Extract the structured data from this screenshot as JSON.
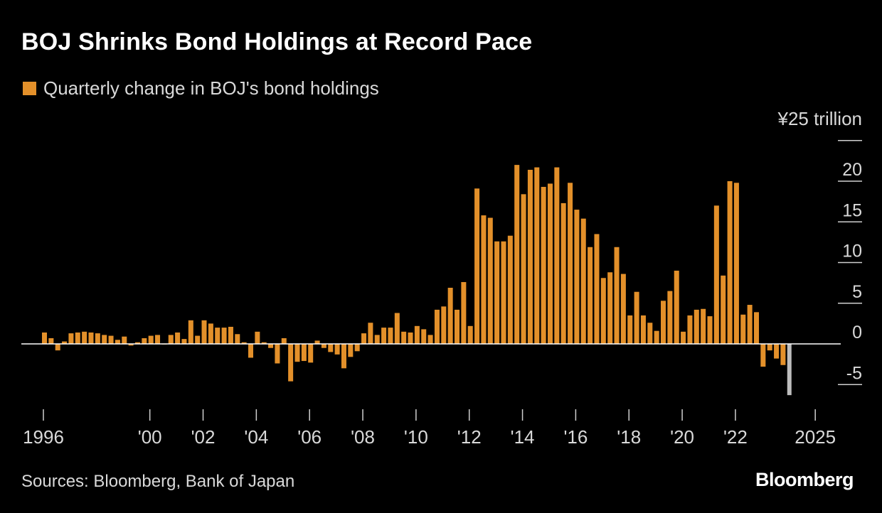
{
  "title": "BOJ Shrinks Bond Holdings at Record Pace",
  "source": "Sources: Bloomberg, Bank of Japan",
  "logo": "Bloomberg",
  "colors": {
    "background": "#000000",
    "bar": "#e3902a",
    "latest_bar": "#bdbdbd",
    "text": "#ffffff",
    "muted_text": "#d9d9d9"
  },
  "chart_data": {
    "type": "bar",
    "title": "BOJ Shrinks Bond Holdings at Record Pace",
    "legend": "Quarterly change in BOJ's bond holdings",
    "ylabel": "¥25 trillion",
    "y_axis_top_label": "¥25 trillion",
    "ylim": [
      -7.5,
      25
    ],
    "yticks": [
      -5,
      0,
      5,
      10,
      15,
      20,
      25
    ],
    "ytick_labels": [
      "-5",
      "0",
      "5",
      "10",
      "15",
      "20"
    ],
    "grid": false,
    "legend_position": "top-left",
    "x_start": {
      "year": 1996,
      "quarter": 1
    },
    "xticks": [
      {
        "year": 1996,
        "label": "1996"
      },
      {
        "year": 2000,
        "label": "'00"
      },
      {
        "year": 2002,
        "label": "'02"
      },
      {
        "year": 2004,
        "label": "'04"
      },
      {
        "year": 2006,
        "label": "'06"
      },
      {
        "year": 2008,
        "label": "'08"
      },
      {
        "year": 2010,
        "label": "'10"
      },
      {
        "year": 2012,
        "label": "'12"
      },
      {
        "year": 2014,
        "label": "'14"
      },
      {
        "year": 2016,
        "label": "'16"
      },
      {
        "year": 2018,
        "label": "'18"
      },
      {
        "year": 2020,
        "label": "'20"
      },
      {
        "year": 2022,
        "label": "'22"
      },
      {
        "year": 2025,
        "label": "2025"
      }
    ],
    "highlight_last": true,
    "values": [
      1.4,
      0.7,
      -0.8,
      0.3,
      1.3,
      1.4,
      1.5,
      1.4,
      1.3,
      1.1,
      1.0,
      0.5,
      0.9,
      -0.2,
      0.2,
      0.7,
      1.0,
      1.1,
      0.0,
      1.1,
      1.4,
      0.6,
      2.9,
      1.0,
      2.9,
      2.5,
      2.0,
      2.0,
      2.1,
      1.2,
      0.2,
      -1.7,
      1.5,
      0.2,
      -0.5,
      -2.4,
      0.7,
      -4.6,
      -2.2,
      -2.1,
      -2.3,
      0.4,
      -0.5,
      -1.0,
      -1.3,
      -3.0,
      -1.6,
      -0.9,
      1.3,
      2.6,
      1.1,
      2.0,
      2.0,
      3.8,
      1.5,
      1.4,
      2.2,
      1.8,
      1.1,
      4.2,
      4.6,
      6.9,
      4.2,
      7.6,
      2.2,
      19.1,
      15.8,
      15.5,
      12.6,
      12.6,
      13.3,
      22.0,
      18.4,
      21.4,
      21.7,
      19.3,
      19.7,
      21.7,
      17.3,
      19.8,
      16.5,
      15.4,
      11.9,
      13.5,
      8.1,
      8.8,
      11.9,
      8.6,
      3.5,
      6.4,
      3.5,
      2.6,
      1.6,
      5.3,
      6.5,
      9.0,
      1.5,
      3.5,
      4.2,
      4.3,
      3.4,
      17.0,
      8.4,
      20.0,
      19.8,
      3.6,
      4.8,
      3.9,
      -2.8,
      -0.8,
      -1.8,
      -2.6,
      -6.3
    ]
  }
}
